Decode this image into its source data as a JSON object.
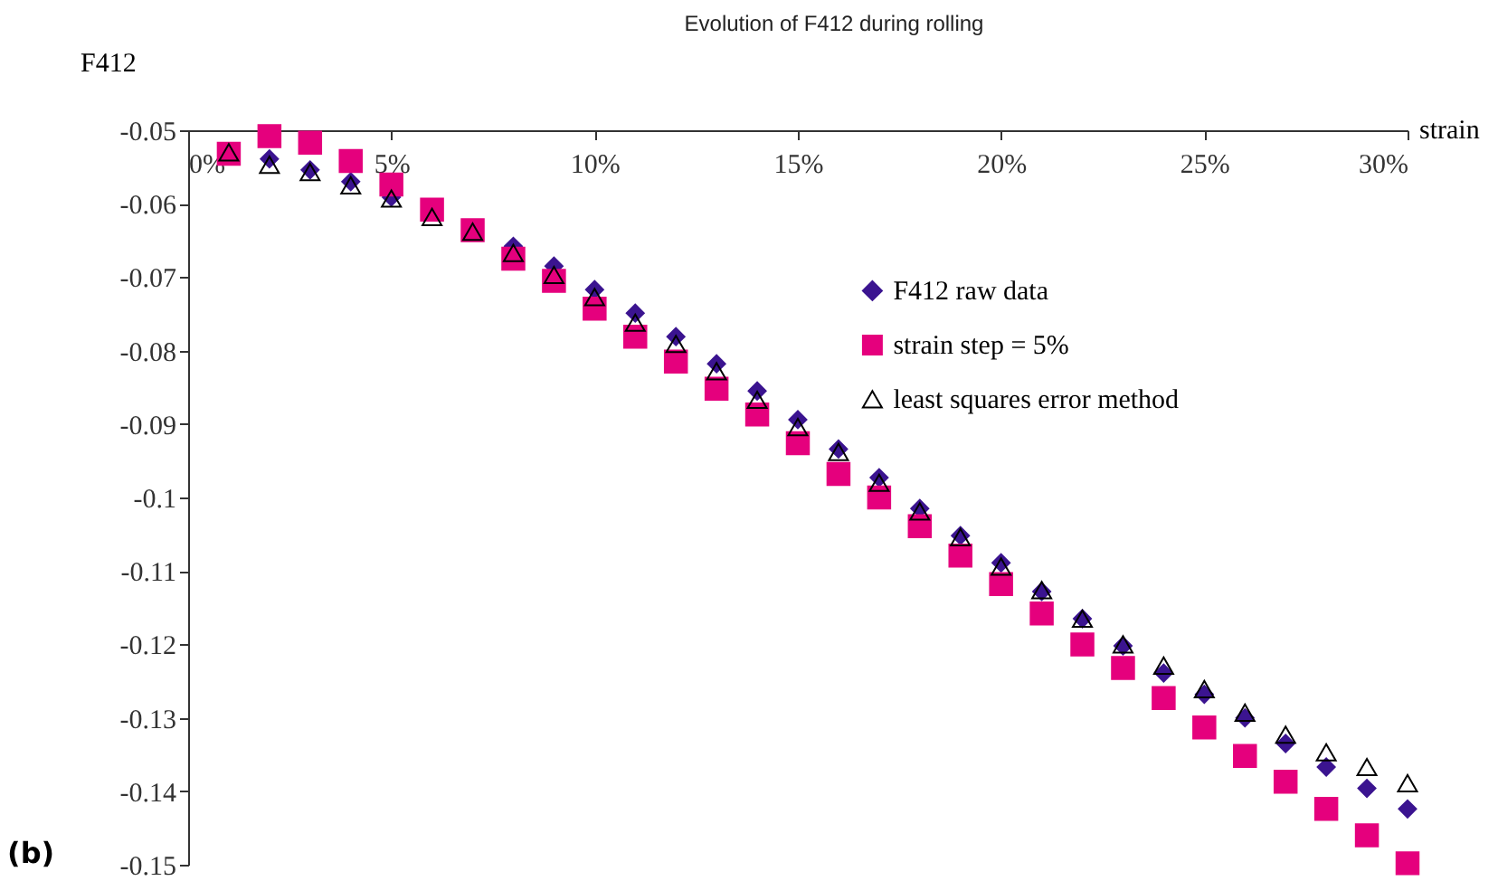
{
  "chart_data": {
    "type": "scatter",
    "title": "Evolution of F412 during rolling",
    "xlabel": "strain",
    "ylabel": "F412",
    "annotations": [
      "(b)"
    ],
    "x": [
      1,
      2,
      3,
      4,
      5,
      6,
      7,
      8,
      9,
      10,
      11,
      12,
      13,
      14,
      15,
      16,
      17,
      18,
      19,
      20,
      21,
      22,
      23,
      24,
      25,
      26,
      27,
      28,
      29,
      30
    ],
    "series": [
      {
        "name": "F412 raw data",
        "color": "#3b1490",
        "marker": "diamond",
        "values": [
          null,
          -0.0539,
          -0.0554,
          -0.057,
          -0.0591,
          null,
          null,
          -0.0658,
          -0.0685,
          -0.0717,
          -0.0749,
          -0.0781,
          -0.0818,
          -0.0855,
          -0.0894,
          -0.0934,
          -0.0973,
          -0.1015,
          -0.1052,
          -0.1089,
          -0.1128,
          -0.1165,
          -0.1202,
          -0.1239,
          -0.1268,
          -0.13,
          -0.1335,
          -0.1367,
          -0.1396,
          -0.1424
        ]
      },
      {
        "name": "strain step = 5%",
        "color": "#e5007d",
        "marker": "square",
        "values": [
          -0.0532,
          -0.0508,
          -0.0517,
          -0.0542,
          -0.0574,
          -0.0608,
          -0.0636,
          -0.0675,
          -0.0705,
          -0.0743,
          -0.0781,
          -0.0815,
          -0.0852,
          -0.0887,
          -0.0926,
          -0.0968,
          -0.1,
          -0.1039,
          -0.1079,
          -0.1118,
          -0.1158,
          -0.12,
          -0.1232,
          -0.1273,
          -0.1313,
          -0.1352,
          -0.1387,
          -0.1424,
          -0.146,
          -0.1498
        ]
      },
      {
        "name": "least squares error method",
        "color": "#000000",
        "marker": "triangle",
        "values": [
          -0.053,
          -0.0547,
          -0.0557,
          -0.0575,
          -0.0593,
          -0.0618,
          -0.0638,
          -0.0667,
          -0.0697,
          -0.0727,
          -0.0762,
          -0.0791,
          -0.0828,
          -0.0867,
          -0.0904,
          -0.0938,
          -0.098,
          -0.1019,
          -0.1054,
          -0.1094,
          -0.1126,
          -0.1165,
          -0.12,
          -0.1229,
          -0.1261,
          -0.1293,
          -0.1323,
          -0.1347,
          -0.1367,
          -0.1389
        ]
      }
    ],
    "xlim": [
      0,
      30
    ],
    "xticks": [
      {
        "value": 0,
        "label": "0%"
      },
      {
        "value": 5,
        "label": "5%"
      },
      {
        "value": 10,
        "label": "10%"
      },
      {
        "value": 15,
        "label": "15%"
      },
      {
        "value": 20,
        "label": "20%"
      },
      {
        "value": 25,
        "label": "25%"
      },
      {
        "value": 30,
        "label": "30%"
      }
    ],
    "ylim": [
      -0.15,
      -0.05
    ],
    "yticks": [
      {
        "value": -0.05,
        "label": "-0.05"
      },
      {
        "value": -0.06,
        "label": "-0.06"
      },
      {
        "value": -0.07,
        "label": "-0.07"
      },
      {
        "value": -0.08,
        "label": "-0.08"
      },
      {
        "value": -0.09,
        "label": "-0.09"
      },
      {
        "value": -0.1,
        "label": "-0.1"
      },
      {
        "value": -0.11,
        "label": "-0.11"
      },
      {
        "value": -0.12,
        "label": "-0.12"
      },
      {
        "value": -0.13,
        "label": "-0.13"
      },
      {
        "value": -0.14,
        "label": "-0.14"
      },
      {
        "value": -0.15,
        "label": "-0.15"
      }
    ],
    "grid": false,
    "legend": "top right"
  }
}
